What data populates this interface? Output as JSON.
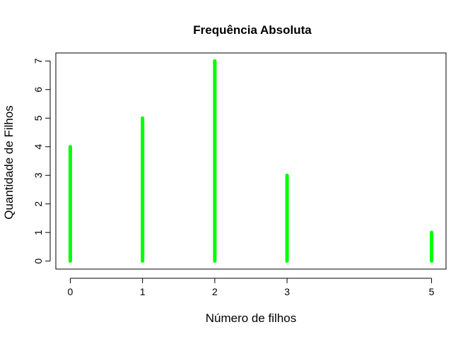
{
  "chart_data": {
    "type": "bar",
    "title": "Frequência Absoluta",
    "xlabel": "Número de filhos",
    "ylabel": "Quantidade de Filhos",
    "x": [
      0,
      1,
      2,
      3,
      5
    ],
    "values": [
      4,
      5,
      7,
      3,
      1
    ],
    "x_ticks": [
      "0",
      "1",
      "2",
      "3",
      "5"
    ],
    "y_ticks": [
      "0",
      "1",
      "2",
      "3",
      "4",
      "5",
      "6",
      "7"
    ],
    "xlim": [
      -0.2,
      5.2
    ],
    "ylim": [
      -0.28,
      7.28
    ],
    "bar_style": "vertical lines",
    "bar_color": "#00ff00",
    "grid": false,
    "legend": "none"
  }
}
